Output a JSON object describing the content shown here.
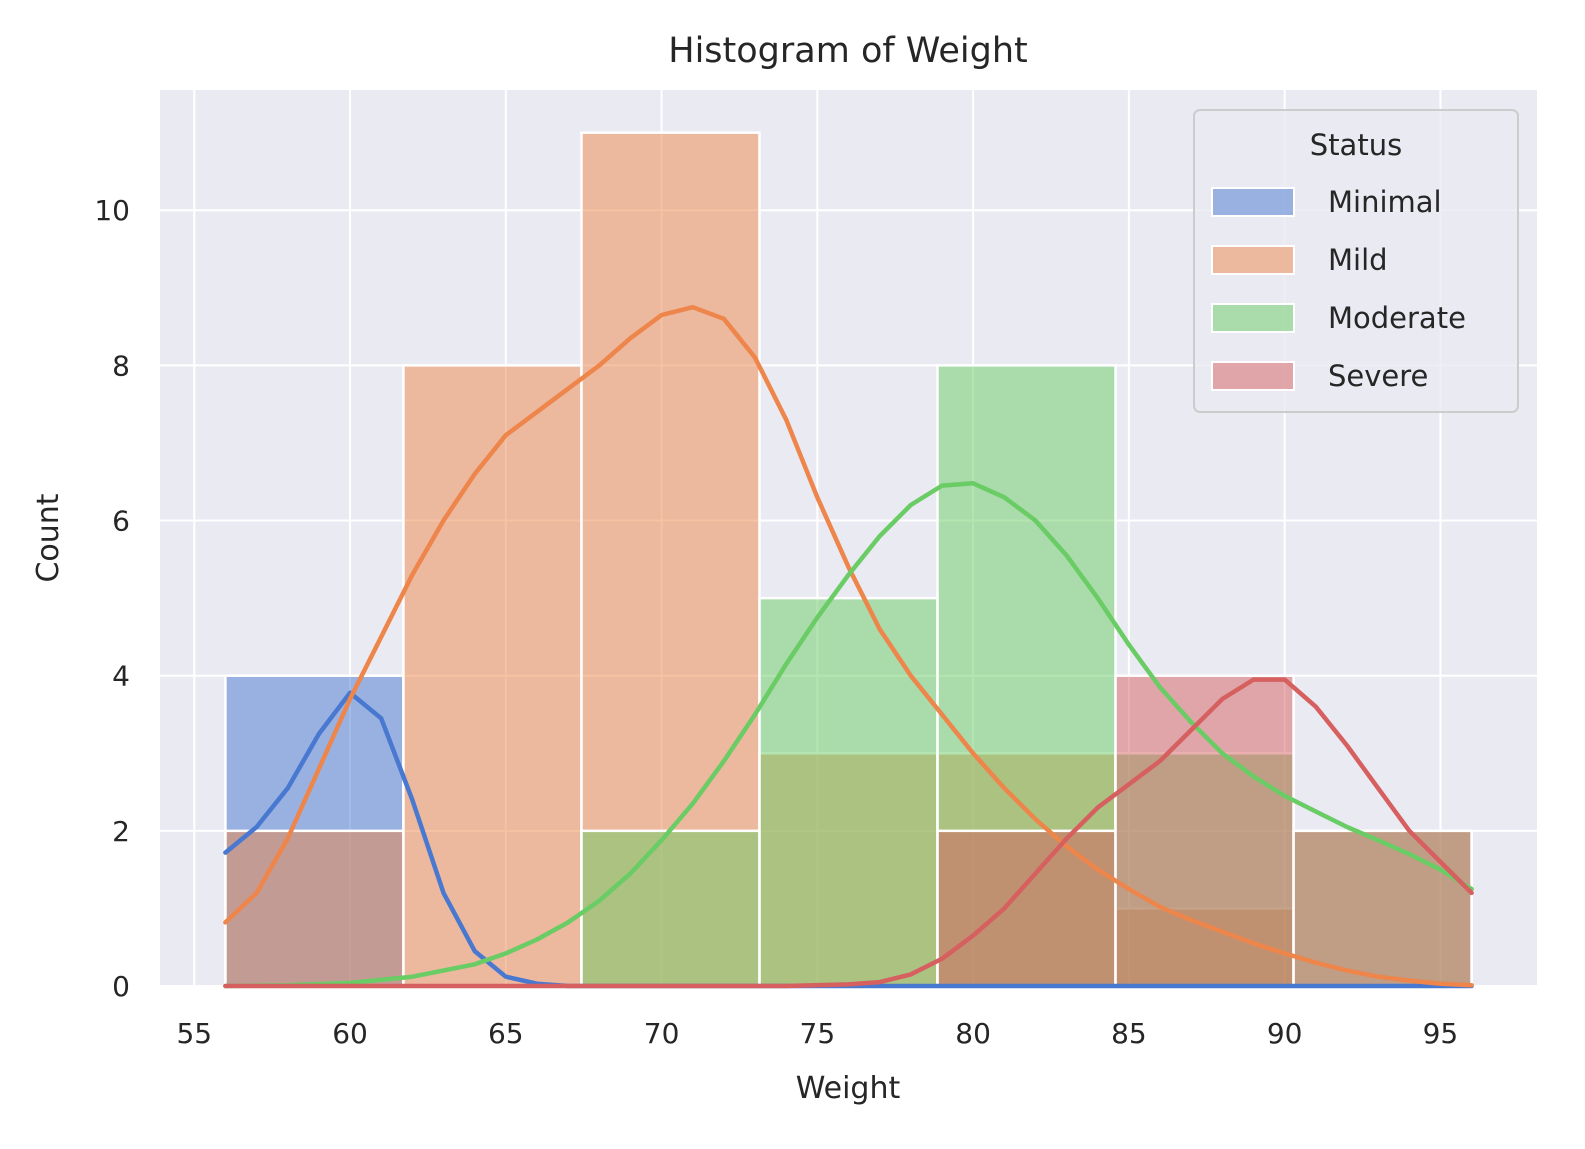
{
  "chart_data": {
    "type": "bar",
    "title": "Histogram of Weight",
    "xlabel": "Weight",
    "ylabel": "Count",
    "xlim": [
      53.9,
      98.1
    ],
    "ylim": [
      0,
      11.55
    ],
    "xticks": [
      55,
      60,
      65,
      70,
      75,
      80,
      85,
      90,
      95
    ],
    "yticks": [
      0,
      2,
      4,
      6,
      8,
      10
    ],
    "grid": true,
    "legend": {
      "title": "Status",
      "placement": "top-right"
    },
    "bin_edges": [
      56.0,
      61.714,
      67.429,
      73.143,
      78.857,
      84.571,
      90.286,
      96.0
    ],
    "series": [
      {
        "name": "Minimal",
        "color": "#4878d0",
        "counts": [
          4,
          0,
          0,
          0,
          0,
          0,
          0
        ],
        "kde": [
          [
            56.0,
            1.72
          ],
          [
            57.0,
            2.05
          ],
          [
            58.0,
            2.55
          ],
          [
            59.0,
            3.25
          ],
          [
            60.0,
            3.78
          ],
          [
            61.0,
            3.45
          ],
          [
            62.0,
            2.4
          ],
          [
            63.0,
            1.2
          ],
          [
            64.0,
            0.45
          ],
          [
            65.0,
            0.12
          ],
          [
            66.0,
            0.03
          ],
          [
            67.0,
            0.0
          ],
          [
            96.0,
            0.0
          ]
        ]
      },
      {
        "name": "Mild",
        "color": "#ee854a",
        "counts": [
          2,
          8,
          11,
          3,
          3,
          1,
          0
        ],
        "kde": [
          [
            56.0,
            0.82
          ],
          [
            57.0,
            1.2
          ],
          [
            58.0,
            1.9
          ],
          [
            59.0,
            2.8
          ],
          [
            60.0,
            3.7
          ],
          [
            61.0,
            4.5
          ],
          [
            62.0,
            5.3
          ],
          [
            63.0,
            6.0
          ],
          [
            64.0,
            6.6
          ],
          [
            65.0,
            7.1
          ],
          [
            66.0,
            7.4
          ],
          [
            67.0,
            7.7
          ],
          [
            68.0,
            8.0
          ],
          [
            69.0,
            8.35
          ],
          [
            70.0,
            8.65
          ],
          [
            71.0,
            8.75
          ],
          [
            72.0,
            8.6
          ],
          [
            73.0,
            8.1
          ],
          [
            74.0,
            7.3
          ],
          [
            75.0,
            6.3
          ],
          [
            76.0,
            5.4
          ],
          [
            77.0,
            4.6
          ],
          [
            78.0,
            4.0
          ],
          [
            79.0,
            3.5
          ],
          [
            80.0,
            3.0
          ],
          [
            81.0,
            2.55
          ],
          [
            82.0,
            2.15
          ],
          [
            83.0,
            1.8
          ],
          [
            84.0,
            1.5
          ],
          [
            85.0,
            1.25
          ],
          [
            86.0,
            1.02
          ],
          [
            87.0,
            0.85
          ],
          [
            88.0,
            0.7
          ],
          [
            89.0,
            0.55
          ],
          [
            90.0,
            0.42
          ],
          [
            91.0,
            0.3
          ],
          [
            92.0,
            0.2
          ],
          [
            93.0,
            0.12
          ],
          [
            94.0,
            0.07
          ],
          [
            95.0,
            0.03
          ],
          [
            96.0,
            0.01
          ]
        ]
      },
      {
        "name": "Moderate",
        "color": "#6acc64",
        "counts": [
          0,
          0,
          2,
          5,
          8,
          3,
          2
        ],
        "kde": [
          [
            56.0,
            0.0
          ],
          [
            58.0,
            0.01
          ],
          [
            60.0,
            0.04
          ],
          [
            62.0,
            0.12
          ],
          [
            64.0,
            0.28
          ],
          [
            65.0,
            0.42
          ],
          [
            66.0,
            0.6
          ],
          [
            67.0,
            0.82
          ],
          [
            68.0,
            1.1
          ],
          [
            69.0,
            1.45
          ],
          [
            70.0,
            1.88
          ],
          [
            71.0,
            2.35
          ],
          [
            72.0,
            2.9
          ],
          [
            73.0,
            3.5
          ],
          [
            74.0,
            4.15
          ],
          [
            75.0,
            4.75
          ],
          [
            76.0,
            5.3
          ],
          [
            77.0,
            5.8
          ],
          [
            78.0,
            6.2
          ],
          [
            79.0,
            6.45
          ],
          [
            80.0,
            6.48
          ],
          [
            81.0,
            6.3
          ],
          [
            82.0,
            6.0
          ],
          [
            83.0,
            5.55
          ],
          [
            84.0,
            5.0
          ],
          [
            85.0,
            4.4
          ],
          [
            86.0,
            3.85
          ],
          [
            87.0,
            3.4
          ],
          [
            88.0,
            3.0
          ],
          [
            89.0,
            2.7
          ],
          [
            90.0,
            2.45
          ],
          [
            91.0,
            2.25
          ],
          [
            92.0,
            2.05
          ],
          [
            93.0,
            1.88
          ],
          [
            94.0,
            1.7
          ],
          [
            95.0,
            1.5
          ],
          [
            96.0,
            1.25
          ]
        ]
      },
      {
        "name": "Severe",
        "color": "#d65f5f",
        "counts": [
          0,
          0,
          0,
          0,
          2,
          4,
          2
        ],
        "kde": [
          [
            56.0,
            0.0
          ],
          [
            74.0,
            0.0
          ],
          [
            76.0,
            0.02
          ],
          [
            77.0,
            0.05
          ],
          [
            78.0,
            0.15
          ],
          [
            79.0,
            0.35
          ],
          [
            80.0,
            0.65
          ],
          [
            81.0,
            1.0
          ],
          [
            82.0,
            1.45
          ],
          [
            83.0,
            1.9
          ],
          [
            84.0,
            2.3
          ],
          [
            85.0,
            2.6
          ],
          [
            86.0,
            2.9
          ],
          [
            87.0,
            3.3
          ],
          [
            88.0,
            3.7
          ],
          [
            89.0,
            3.95
          ],
          [
            90.0,
            3.95
          ],
          [
            91.0,
            3.6
          ],
          [
            92.0,
            3.1
          ],
          [
            93.0,
            2.55
          ],
          [
            94.0,
            2.0
          ],
          [
            95.0,
            1.6
          ],
          [
            96.0,
            1.2
          ]
        ]
      }
    ]
  }
}
